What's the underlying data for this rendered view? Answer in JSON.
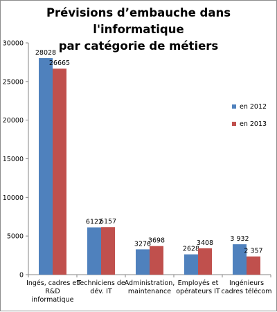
{
  "chart_data": {
    "type": "bar",
    "title_lines": [
      "Prévisions d’embauche dans l'informatique",
      "par catégorie de métiers"
    ],
    "categories": [
      [
        "Ingés, cadres et",
        "R&D",
        "informatique"
      ],
      [
        "Techniciens de",
        "dév. IT"
      ],
      [
        "Administration,",
        "maintenance"
      ],
      [
        "Employés et",
        "opérateurs IT"
      ],
      [
        "Ingénieurs",
        "cadres télécom"
      ]
    ],
    "series": [
      {
        "name": "en 2012",
        "color": "#4f81bd",
        "values": [
          28028,
          6122,
          3276,
          2628,
          3932
        ],
        "labels": [
          "28028",
          "6122",
          "3276",
          "2628",
          "3 932"
        ]
      },
      {
        "name": "en 2013",
        "color": "#c0504d",
        "values": [
          26665,
          6157,
          3698,
          3408,
          2357
        ],
        "labels": [
          "26665",
          "6157",
          "3698",
          "3408",
          "2 357"
        ]
      }
    ],
    "ylim": [
      0,
      30000
    ],
    "yticks": [
      0,
      5000,
      10000,
      15000,
      20000,
      25000,
      30000
    ],
    "grid": false,
    "legend_position": "right"
  }
}
